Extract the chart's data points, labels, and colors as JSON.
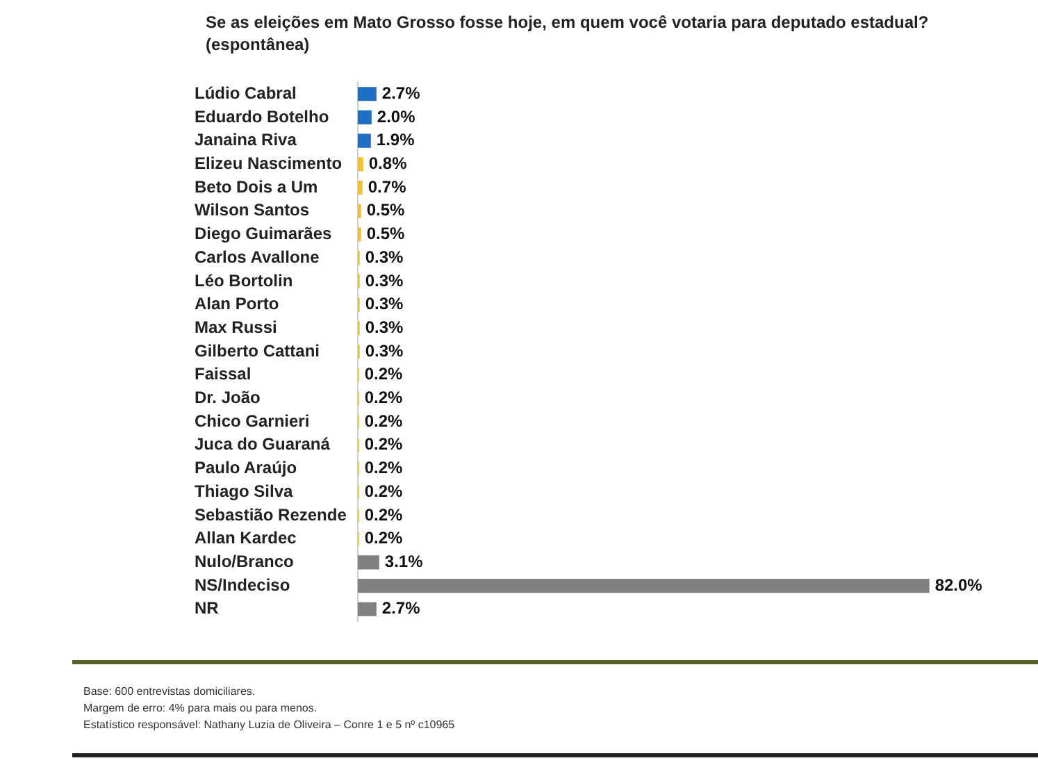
{
  "chart_data": {
    "type": "bar",
    "orientation": "horizontal",
    "title": "Se as eleições em Mato Grosso fosse hoje, em quem você votaria para deputado estadual? (espontânea)",
    "categories": [
      "Lúdio Cabral",
      "Eduardo Botelho",
      "Janaina Riva",
      "Elizeu Nascimento",
      "Beto Dois a Um",
      "Wilson Santos",
      "Diego Guimarães",
      "Carlos Avallone",
      "Léo Bortolin",
      "Alan Porto",
      "Max Russi",
      "Gilberto Cattani",
      "Faissal",
      "Dr. João",
      "Chico Garnieri",
      "Juca do Guaraná",
      "Paulo Araújo",
      "Thiago Silva",
      "Sebastião Rezende",
      "Allan Kardec",
      "Nulo/Branco",
      "NS/Indeciso",
      "NR"
    ],
    "values": [
      2.7,
      2.0,
      1.9,
      0.8,
      0.7,
      0.5,
      0.5,
      0.3,
      0.3,
      0.3,
      0.3,
      0.3,
      0.2,
      0.2,
      0.2,
      0.2,
      0.2,
      0.2,
      0.2,
      0.2,
      3.1,
      82.0,
      2.7
    ],
    "value_labels": [
      "2.7%",
      "2.0%",
      "1.9%",
      "0.8%",
      "0.7%",
      "0.5%",
      "0.5%",
      "0.3%",
      "0.3%",
      "0.3%",
      "0.3%",
      "0.3%",
      "0.2%",
      "0.2%",
      "0.2%",
      "0.2%",
      "0.2%",
      "0.2%",
      "0.2%",
      "0.2%",
      "3.1%",
      "82.0%",
      "2.7%"
    ],
    "colors": [
      "#1f6fc5",
      "#1f6fc5",
      "#1f6fc5",
      "#f5c02a",
      "#f5c02a",
      "#f5c02a",
      "#f5c02a",
      "#f5c02a",
      "#f5c02a",
      "#f5c02a",
      "#f5c02a",
      "#f5c02a",
      "#f5c02a",
      "#f5c02a",
      "#f5c02a",
      "#f5c02a",
      "#f5c02a",
      "#f5c02a",
      "#f5c02a",
      "#f5c02a",
      "#808080",
      "#808080",
      "#808080"
    ],
    "annotations": [
      "Base: 600 entrevistas domiciliares.",
      "Margem de erro: 4% para mais ou para menos.",
      "Estatístico responsável: Nathany Luzia de Oliveira – Conre 1 e 5 nº c10965"
    ]
  }
}
